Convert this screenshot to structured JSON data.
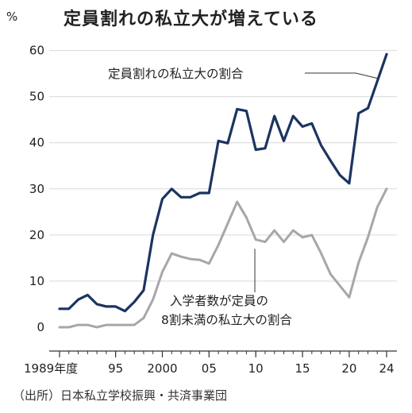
{
  "unit_label": "%",
  "title": "定員割れの私立大が増えている",
  "source": "（出所）日本私立学校振興・共済事業団",
  "colors": {
    "navy": "#1b3461",
    "gray": "#a6a6ac",
    "axis": "#333333",
    "grid": "#d9d9d9"
  },
  "chart_data": {
    "type": "line",
    "title": "定員割れの私立大が増えている",
    "ylabel": "%",
    "xlabel": "",
    "ylim": [
      0,
      62
    ],
    "xlim": [
      1989,
      2024
    ],
    "x_tick_labels": [
      {
        "x": 1989,
        "label": "1989年度"
      },
      {
        "x": 1995,
        "label": "95"
      },
      {
        "x": 2000,
        "label": "2000"
      },
      {
        "x": 2005,
        "label": "05"
      },
      {
        "x": 2010,
        "label": "10"
      },
      {
        "x": 2015,
        "label": "15"
      },
      {
        "x": 2020,
        "label": "20"
      },
      {
        "x": 2024,
        "label": "24"
      }
    ],
    "y_ticks": [
      0,
      10,
      20,
      30,
      40,
      50,
      60
    ],
    "grid": "horizontal",
    "x": [
      1989,
      1990,
      1991,
      1992,
      1993,
      1994,
      1995,
      1996,
      1997,
      1998,
      1999,
      2000,
      2001,
      2002,
      2003,
      2004,
      2005,
      2006,
      2007,
      2008,
      2009,
      2010,
      2011,
      2012,
      2013,
      2014,
      2015,
      2016,
      2017,
      2018,
      2019,
      2020,
      2021,
      2022,
      2023,
      2024
    ],
    "series": [
      {
        "name": "定員割れの私立大の割合",
        "color": "#1b3461",
        "values": [
          4,
          4,
          6,
          7,
          5,
          4.5,
          4.5,
          3.5,
          5.5,
          8,
          20,
          27.8,
          30,
          28.2,
          28.2,
          29.1,
          29.1,
          40.4,
          39.9,
          47.3,
          46.9,
          38.5,
          38.8,
          45.8,
          40.4,
          45.8,
          43.5,
          44.2,
          39.4,
          36.1,
          33,
          31.2,
          46.4,
          47.5,
          53.3,
          59.2
        ]
      },
      {
        "name": "入学者数が定員の8割未満の私立大の割合",
        "color": "#a6a6ac",
        "values": [
          0,
          0,
          0.5,
          0.5,
          0,
          0.5,
          0.5,
          0.5,
          0.5,
          2,
          6,
          12,
          16,
          15.3,
          14.8,
          14.6,
          13.8,
          17.8,
          22.5,
          27.2,
          23.8,
          19,
          18.5,
          21,
          18.5,
          21,
          19.5,
          20,
          16,
          11.5,
          9,
          6.5,
          14,
          19.5,
          26,
          30
        ]
      }
    ],
    "annotations": [
      {
        "series": 0,
        "lines": [
          "定員割れの私立大の割合"
        ]
      },
      {
        "series": 1,
        "lines": [
          "入学者数が定員の",
          "8割未満の私立大の割合"
        ]
      }
    ]
  }
}
